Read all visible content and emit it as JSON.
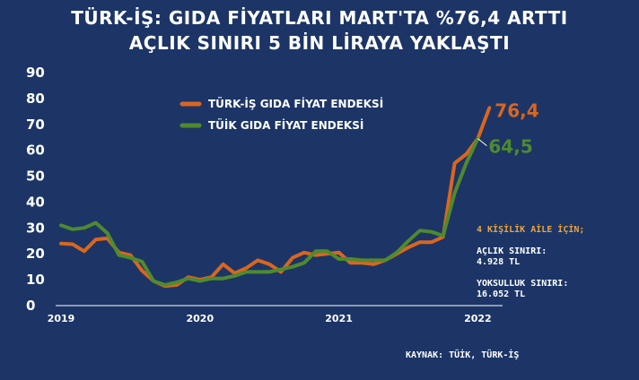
{
  "title": {
    "line1": "TÜRK-İŞ: GIDA FİYATLARI MART'TA %76,4 ARTTI",
    "line2": "AÇLIK SINIRI 5 BİN LİRAYA YAKLAŞTI"
  },
  "colors": {
    "background": "#1c3566",
    "turkis": "#d9661f",
    "tuik": "#4f8a2e",
    "note_header": "#e8a33d"
  },
  "notes": {
    "header": "4 KİŞİLİK AİLE İÇİN;",
    "hunger_label": "AÇLIK SINIRI:",
    "hunger_value": "4.928 TL",
    "poverty_label": "YOKSULLUK SINIRI:",
    "poverty_value": "16.052 TL"
  },
  "source": "KAYNAK: TÜİK, TÜRK-İŞ",
  "chart_data": {
    "type": "line",
    "x_ticks": [
      "2019",
      "2020",
      "2021",
      "2022"
    ],
    "y_ticks": [
      0,
      10,
      20,
      30,
      40,
      50,
      60,
      70,
      80,
      90
    ],
    "ylim": [
      0,
      90
    ],
    "grid": false,
    "legend_position": "top-center",
    "end_labels": {
      "turkis": "76,4",
      "tuik": "64,5"
    },
    "series": [
      {
        "name": "TÜRK-İŞ GIDA FİYAT ENDEKSİ",
        "key": "turkis",
        "values": [
          24,
          23.7,
          21,
          25.5,
          26,
          20.5,
          19.5,
          13.5,
          9.5,
          7.5,
          8,
          11,
          10,
          11,
          16,
          12.5,
          14.5,
          17.5,
          16,
          13,
          18.5,
          20.5,
          19.5,
          20,
          20.5,
          16.5,
          16.5,
          16,
          17.5,
          20,
          22.5,
          24.5,
          24.5,
          26.5,
          55,
          58.5,
          64.5,
          76.4
        ]
      },
      {
        "name": "TÜİK GIDA FİYAT ENDEKSİ",
        "key": "tuik",
        "values": [
          31,
          29.5,
          30,
          32,
          28,
          19.5,
          18.5,
          17,
          9.5,
          8,
          9,
          10.5,
          9.5,
          10.5,
          10.5,
          11.5,
          13,
          13,
          13,
          14,
          15,
          16.5,
          21,
          21,
          18,
          18,
          17.5,
          17.5,
          17.5,
          20.5,
          25,
          29,
          28.5,
          27,
          43.5,
          55,
          64.5
        ]
      }
    ]
  }
}
